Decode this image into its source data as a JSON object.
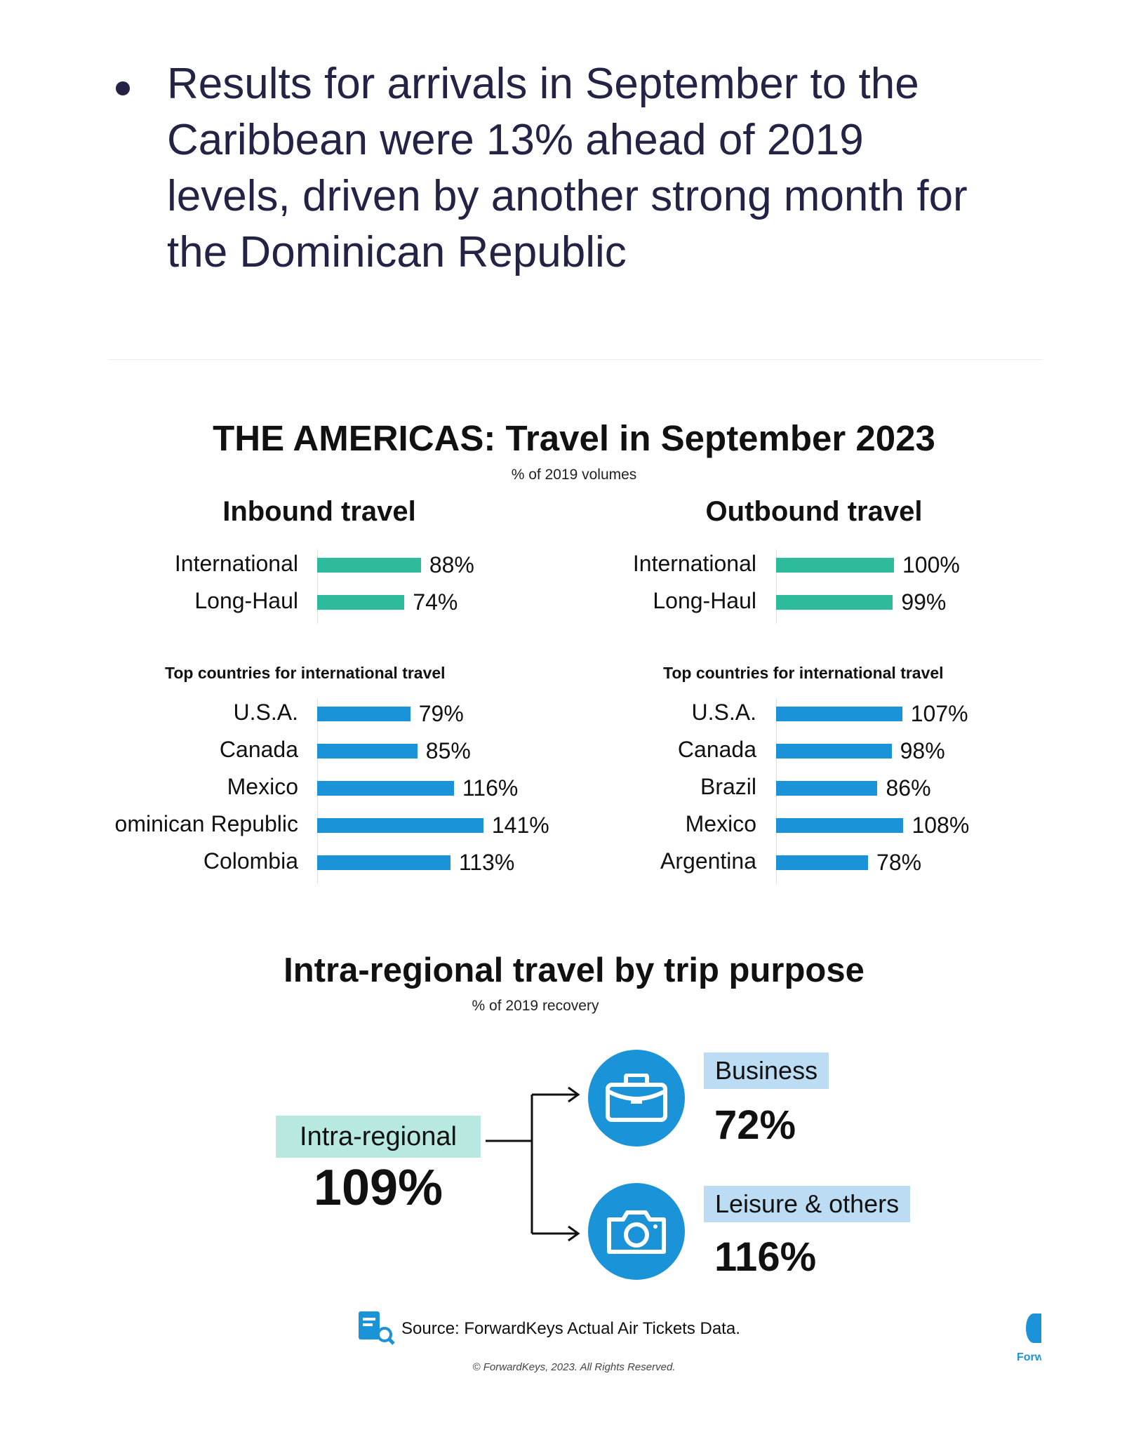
{
  "bullet": {
    "text": "Results for arrivals in September to the Caribbean were 13% ahead of 2019 levels, driven by another strong month for the Dominican Republic"
  },
  "chart_title": "THE AMERICAS: Travel in September 2023",
  "chart_subtitle": "% of 2019 volumes",
  "chart_data": [
    {
      "type": "bar",
      "orientation": "horizontal",
      "title": "Inbound travel",
      "categories": [
        "International",
        "Long-Haul"
      ],
      "values": [
        88,
        74
      ],
      "value_labels": [
        "88%",
        "74%"
      ],
      "color": "#2ebb9b"
    },
    {
      "type": "bar",
      "orientation": "horizontal",
      "title": "Top countries for international travel",
      "categories": [
        "U.S.A.",
        "Canada",
        "Mexico",
        "ominican Republic",
        "Colombia"
      ],
      "values": [
        79,
        85,
        116,
        141,
        113
      ],
      "value_labels": [
        "79%",
        "85%",
        "116%",
        "141%",
        "113%"
      ],
      "color": "#1b93d8"
    },
    {
      "type": "bar",
      "orientation": "horizontal",
      "title": "Outbound travel",
      "categories": [
        "International",
        "Long-Haul"
      ],
      "values": [
        100,
        99
      ],
      "value_labels": [
        "100%",
        "99%"
      ],
      "color": "#2ebb9b"
    },
    {
      "type": "bar",
      "orientation": "horizontal",
      "title": "Top countries for international travel",
      "categories": [
        "U.S.A.",
        "Canada",
        "Brazil",
        "Mexico",
        "Argentina"
      ],
      "values": [
        107,
        98,
        86,
        108,
        78
      ],
      "value_labels": [
        "107%",
        "98%",
        "86%",
        "108%",
        "78%"
      ],
      "color": "#1b93d8"
    }
  ],
  "intra": {
    "title": "Intra-regional travel by trip purpose",
    "subtitle": "% of 2019 recovery",
    "source_label": "Intra-regional",
    "source_value": "109%",
    "business_label": "Business",
    "business_value": "72%",
    "leisure_label": "Leisure & others",
    "leisure_value": "116%",
    "business_icon": "briefcase-icon",
    "leisure_icon": "camera-icon"
  },
  "footer": {
    "source": "Source: ForwardKeys Actual Air Tickets Data.",
    "copyright": "© ForwardKeys, 2023. All Rights Reserved.",
    "logo_text": "Forw",
    "source_icon": "document-search-icon"
  }
}
